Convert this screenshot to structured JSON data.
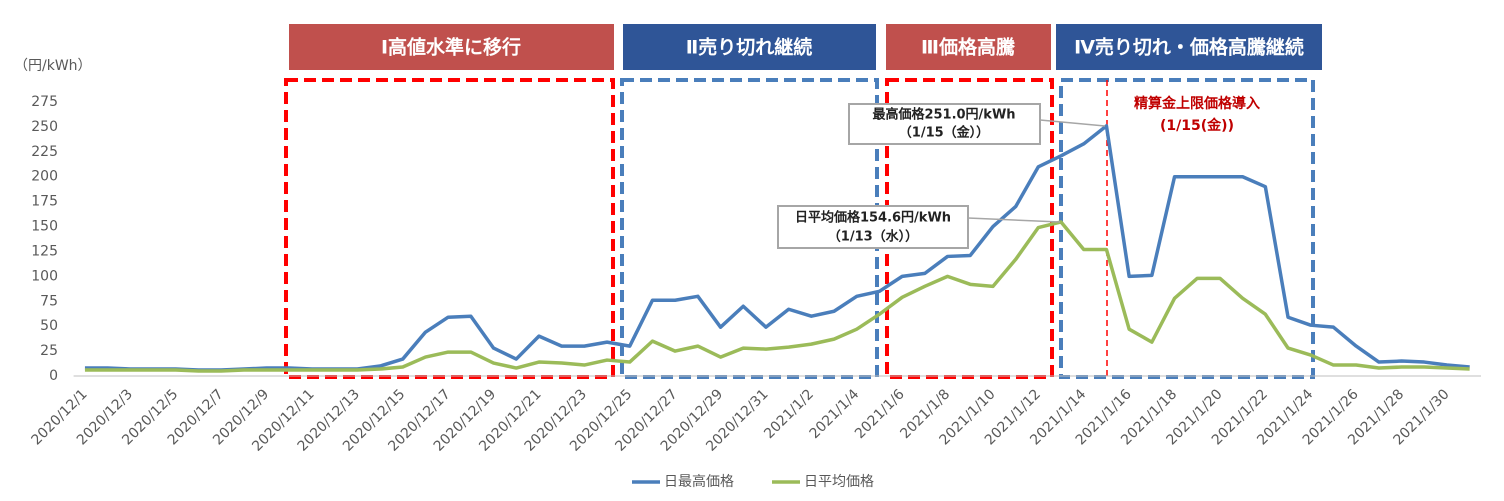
{
  "chart_data": {
    "type": "line",
    "y_unit": "（円/kWh）",
    "categories": [
      "2020/12/1",
      null,
      "2020/12/3",
      null,
      "2020/12/5",
      null,
      "2020/12/7",
      null,
      "2020/12/9",
      null,
      "2020/12/11",
      null,
      "2020/12/13",
      null,
      "2020/12/15",
      null,
      "2020/12/17",
      null,
      "2020/12/19",
      null,
      "2020/12/21",
      null,
      "2020/12/23",
      null,
      "2020/12/25",
      null,
      "2020/12/27",
      null,
      "2020/12/29",
      null,
      "2020/12/31",
      null,
      "2021/1/2",
      null,
      "2021/1/4",
      null,
      "2021/1/6",
      null,
      "2021/1/8",
      null,
      "2021/1/10",
      null,
      "2021/1/12",
      null,
      "2021/1/14",
      null,
      "2021/1/16",
      null,
      "2021/1/18",
      null,
      "2021/1/20",
      null,
      "2021/1/22",
      null,
      "2021/1/24",
      null,
      "2021/1/26",
      null,
      "2021/1/28",
      null,
      "2021/1/30",
      null
    ],
    "series": [
      {
        "name": "日最高価格",
        "color": "#4a7ebb",
        "values": [
          8,
          8,
          7,
          7,
          7,
          6,
          6,
          7,
          8,
          8,
          7,
          7,
          7,
          10,
          17,
          44,
          59,
          60,
          28,
          17,
          40,
          30,
          30,
          34,
          30,
          76,
          76,
          80,
          49,
          70,
          49,
          67,
          60,
          65,
          80,
          85,
          100,
          103,
          120,
          121,
          150,
          170,
          210,
          221,
          233,
          251.0,
          100,
          101,
          200,
          200,
          200,
          200,
          190,
          59,
          51,
          49,
          30,
          14,
          15,
          14,
          11,
          9
        ]
      },
      {
        "name": "日平均価格",
        "color": "#9bbb59",
        "values": [
          6,
          6,
          6,
          6,
          6,
          5,
          5,
          6,
          6,
          6,
          6,
          6,
          6,
          7,
          9,
          19,
          24,
          24,
          13,
          8,
          14,
          13,
          11,
          16,
          14,
          35,
          25,
          30,
          19,
          28,
          27,
          29,
          32,
          37,
          47,
          62,
          79,
          90,
          100,
          92,
          90,
          117,
          149,
          154.6,
          127,
          127,
          47,
          34,
          78,
          98,
          98,
          78,
          62,
          28,
          21,
          11,
          11,
          8,
          9,
          9,
          8,
          7
        ]
      }
    ],
    "ylim": [
      0,
      275
    ],
    "yticks": [
      0,
      25,
      50,
      75,
      100,
      125,
      150,
      175,
      200,
      225,
      250,
      275
    ],
    "grid": false,
    "legend": "bottom",
    "phases": [
      {
        "label": "Ⅰ高値水準に移行",
        "color": "#c0504d"
      },
      {
        "label": "Ⅱ売り切れ継続",
        "color": "#2f5597"
      },
      {
        "label": "Ⅲ価格高騰",
        "color": "#c0504d"
      },
      {
        "label": "Ⅳ売り切れ・価格高騰継続",
        "color": "#2f5597"
      }
    ],
    "annotations": [
      {
        "lines": [
          "最高価格251.0円/kWh",
          "（1/15（金））"
        ]
      },
      {
        "lines": [
          "日平均価格154.6円/kWh",
          "（1/13（水））"
        ]
      },
      {
        "lines": [
          "精算金上限価格導入",
          "(1/15(金))"
        ]
      }
    ]
  }
}
